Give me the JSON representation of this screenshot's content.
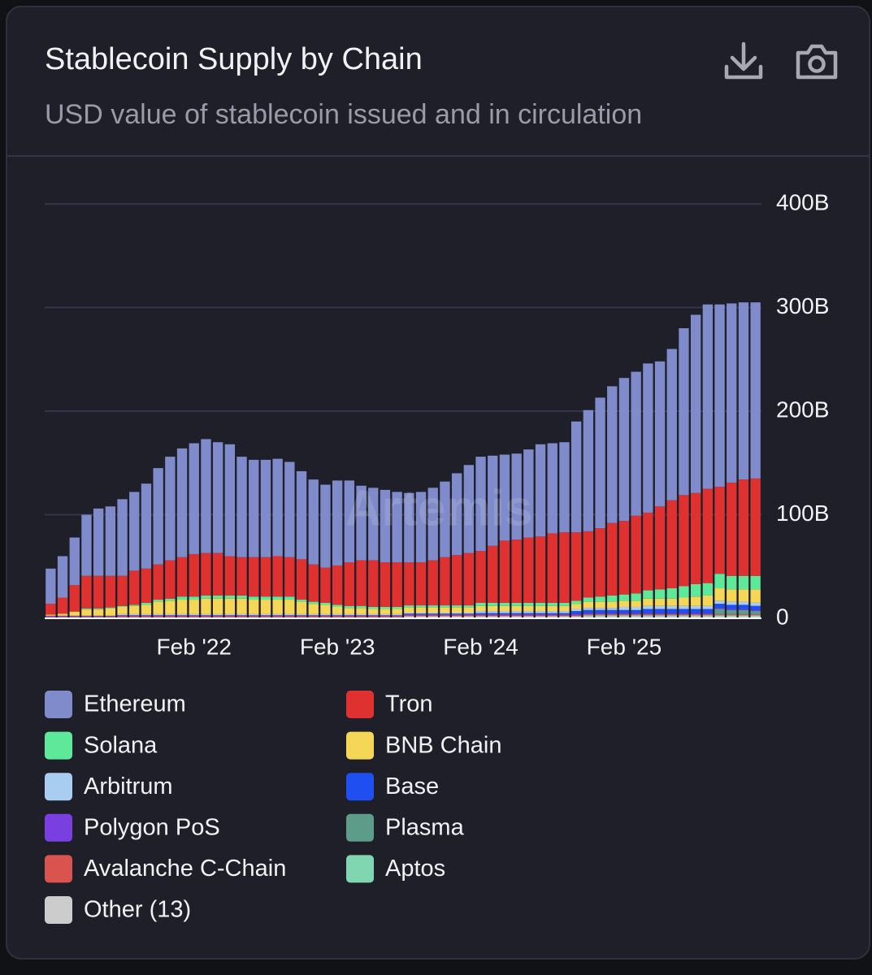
{
  "chart_data": {
    "type": "stacked_bar",
    "title": "Stablecoin Supply by Chain",
    "subtitle": "USD value of stablecoin issued and in circulation",
    "watermark": "Artemis",
    "categories": [
      null,
      null,
      null,
      null,
      null,
      null,
      null,
      null,
      null,
      null,
      null,
      null,
      "Feb '22",
      null,
      null,
      null,
      null,
      null,
      null,
      null,
      null,
      null,
      null,
      null,
      "Feb '23",
      null,
      null,
      null,
      null,
      null,
      null,
      null,
      null,
      null,
      null,
      null,
      "Feb '24",
      null,
      null,
      null,
      null,
      null,
      null,
      null,
      null,
      null,
      null,
      null,
      "Feb '25",
      null,
      null,
      null,
      null,
      null,
      null,
      null,
      null,
      null,
      null,
      null
    ],
    "ylim": [
      0,
      400
    ],
    "yticks": [
      {
        "value": 0,
        "label": "0"
      },
      {
        "value": 100,
        "label": "100B"
      },
      {
        "value": 200,
        "label": "200B"
      },
      {
        "value": 300,
        "label": "300B"
      },
      {
        "value": 400,
        "label": "400B"
      }
    ],
    "grid": true,
    "legend": "bottom",
    "series": [
      {
        "name": "Ethereum",
        "color": "#7f8bcb",
        "values": [
          34,
          40,
          46,
          59,
          65,
          67,
          74,
          76,
          82,
          93,
          100,
          105,
          107,
          110,
          107,
          108,
          97,
          94,
          94,
          94,
          92,
          85,
          82,
          80,
          82,
          79,
          72,
          70,
          70,
          68,
          67,
          68,
          70,
          73,
          79,
          85,
          91,
          87,
          83,
          83,
          85,
          89,
          87,
          87,
          107,
          117,
          126,
          132,
          138,
          139,
          144,
          140,
          146,
          161,
          172,
          178,
          176,
          173,
          171,
          170
        ]
      },
      {
        "name": "Tron",
        "color": "#e03131",
        "values": [
          10.5,
          15.5,
          25.5,
          31.5,
          31.5,
          30.5,
          29,
          33,
          33,
          34,
          37,
          38,
          41,
          41,
          41,
          38,
          37,
          38,
          38,
          39,
          38,
          39,
          36,
          34,
          38,
          42,
          44,
          45,
          43,
          43,
          41.5,
          41.5,
          43.5,
          46.5,
          48.5,
          50.5,
          50,
          55,
          60,
          61,
          63,
          64,
          67,
          68,
          66,
          64,
          66,
          70,
          71,
          75,
          75,
          80,
          85,
          88,
          88,
          91,
          84,
          90,
          93,
          94
        ]
      },
      {
        "name": "Solana",
        "color": "#5ee89a",
        "values": [
          0,
          0,
          0,
          1,
          1,
          1,
          1,
          1,
          2,
          2,
          2,
          3,
          3,
          3,
          3,
          3,
          3,
          3,
          3,
          3,
          3,
          2,
          2,
          2,
          2,
          2,
          2,
          2,
          2,
          2,
          2,
          2,
          2,
          2,
          2,
          2,
          3,
          3,
          3,
          3,
          3,
          3,
          3,
          3,
          3,
          4,
          5,
          6,
          6,
          7,
          8,
          9,
          10,
          11,
          12,
          12,
          14,
          13,
          13,
          13
        ]
      },
      {
        "name": "BNB Chain",
        "color": "#f5d657",
        "values": [
          1,
          2,
          4,
          6,
          6,
          7,
          7,
          8,
          9,
          12,
          13,
          14,
          14,
          15,
          15,
          15,
          15,
          14,
          14,
          14,
          14,
          12,
          10,
          9,
          7,
          6,
          6,
          5,
          5,
          5,
          5,
          5,
          5,
          5,
          5,
          5,
          5,
          5,
          5,
          5,
          5,
          5,
          5,
          5,
          5,
          6,
          6,
          6,
          6,
          6,
          7,
          7,
          7,
          8,
          9,
          10,
          12,
          12,
          12,
          13
        ]
      },
      {
        "name": "Arbitrum",
        "color": "#a8cdf0",
        "values": [
          0,
          0,
          0,
          0,
          0,
          0,
          1,
          1,
          1,
          1,
          1,
          1,
          1,
          1,
          1,
          1,
          1,
          1,
          1,
          1,
          1,
          1,
          1,
          1,
          1,
          1,
          1,
          1,
          1,
          1,
          1,
          1,
          1,
          1,
          1,
          1,
          2,
          2,
          2,
          2,
          2,
          2,
          2,
          2,
          2,
          2,
          2,
          2,
          3,
          3,
          3,
          3,
          3,
          3,
          3,
          3,
          3,
          3,
          3,
          3
        ]
      },
      {
        "name": "Base",
        "color": "#1f4ff0",
        "values": [
          0,
          0,
          0,
          0,
          0,
          0,
          0,
          0,
          0,
          0,
          0,
          0,
          0,
          0,
          0,
          0,
          0,
          0,
          0,
          0,
          0,
          0,
          0,
          0,
          0,
          0,
          0,
          0,
          0,
          0,
          0.5,
          0.5,
          0.5,
          0.5,
          0.5,
          0.5,
          1,
          1,
          1,
          1,
          1,
          1,
          1,
          1,
          3,
          3,
          3,
          3,
          3,
          3,
          4,
          4,
          4,
          4,
          4,
          4,
          4,
          4,
          4,
          4
        ]
      },
      {
        "name": "Polygon PoS",
        "color": "#7a3fe0",
        "values": [
          1,
          1,
          1,
          1,
          1,
          1,
          1,
          1,
          1,
          1,
          1,
          1,
          1,
          1,
          1,
          1,
          1,
          1,
          1,
          1,
          1,
          1,
          1,
          1,
          1,
          1,
          1,
          1,
          1,
          1,
          1,
          1,
          1,
          1,
          1,
          1,
          1,
          1,
          1,
          1,
          1,
          1,
          1,
          1,
          1,
          1,
          1,
          1,
          1,
          1,
          1,
          1,
          1,
          1,
          1,
          1,
          1,
          1,
          1,
          1
        ]
      },
      {
        "name": "Plasma",
        "color": "#5e9c8a",
        "values": [
          0,
          0,
          0,
          0,
          0,
          0,
          0,
          0,
          0,
          0,
          0,
          0,
          0,
          0,
          0,
          0,
          0,
          0,
          0,
          0,
          0,
          0,
          0,
          0,
          0,
          0,
          0,
          0,
          0,
          0,
          0,
          0,
          0,
          0,
          0,
          0,
          0,
          0,
          0,
          0,
          0,
          0,
          0,
          0,
          0,
          0,
          0,
          0,
          0,
          0,
          0,
          0,
          0,
          0,
          0,
          0,
          5,
          4,
          4,
          3
        ]
      },
      {
        "name": "Avalanche C-Chain",
        "color": "#d9534f",
        "values": [
          0.5,
          0.5,
          0.5,
          0.5,
          0.5,
          0.5,
          1,
          1,
          1,
          1,
          1,
          1,
          1,
          1,
          1,
          1,
          1,
          1,
          1,
          1,
          1,
          1,
          1,
          1,
          1,
          1,
          1,
          1,
          1,
          1,
          1,
          1,
          1,
          1,
          1,
          1,
          1,
          1,
          1,
          1,
          1,
          1,
          1,
          1,
          1,
          1,
          1,
          1,
          1,
          1,
          1,
          1,
          1,
          1,
          1,
          1,
          1,
          1,
          1,
          1
        ]
      },
      {
        "name": "Aptos",
        "color": "#7fd6b0",
        "values": [
          0,
          0,
          0,
          0,
          0,
          0,
          0,
          0,
          0,
          0,
          0,
          0,
          0,
          0,
          0,
          0,
          0,
          0,
          0,
          0,
          0,
          0,
          0,
          0,
          0,
          0,
          0,
          0,
          0,
          0,
          0,
          0,
          0,
          0,
          0,
          0,
          0,
          0,
          0,
          0,
          0,
          0,
          0,
          0,
          0,
          1,
          1,
          1,
          1,
          1,
          1,
          1,
          1,
          1,
          1,
          1,
          1,
          1,
          1,
          1
        ]
      },
      {
        "name": "Other (13)",
        "color": "#cccccc",
        "values": [
          1,
          1,
          1,
          1,
          1,
          1,
          1,
          1,
          1,
          1,
          1,
          1,
          1,
          1,
          1,
          1,
          1,
          1,
          1,
          1,
          1,
          1,
          1,
          1,
          1,
          1,
          1,
          1,
          1,
          1,
          2,
          2,
          2,
          2,
          2,
          2,
          2,
          2,
          2,
          2,
          2,
          2,
          2,
          2,
          2,
          2,
          2,
          2,
          2,
          2,
          2,
          2,
          2,
          2,
          2,
          2,
          2,
          2,
          2,
          2
        ]
      }
    ]
  }
}
